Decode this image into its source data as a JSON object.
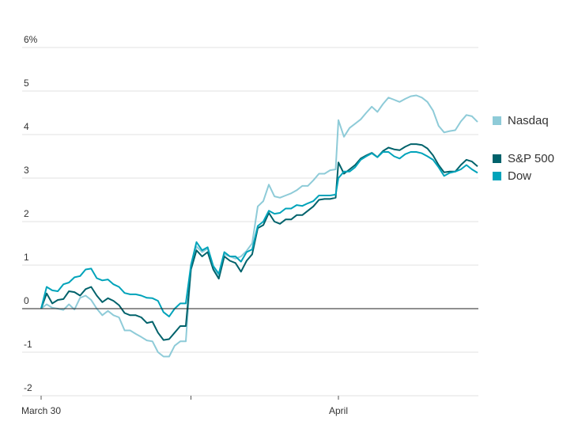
{
  "chart_data": {
    "type": "line",
    "title": "",
    "xlabel": "",
    "ylabel": "",
    "y_unit_suffix": "%",
    "ylim": [
      -2,
      6
    ],
    "y_ticks": [
      -2,
      -1,
      0,
      1,
      2,
      3,
      4,
      5,
      6
    ],
    "y_tick_labels": [
      "-2",
      "-1",
      "0",
      "1",
      "2",
      "3",
      "4",
      "5",
      "6%"
    ],
    "grid": true,
    "legend_placement": "right",
    "days": [
      "03-30",
      "03-31",
      "04-01"
    ],
    "x_ticks": [
      {
        "day": "03-30",
        "label": "March 30"
      },
      {
        "day": "03-31",
        "label": ""
      },
      {
        "day": "04-01",
        "label": "April"
      }
    ],
    "times_full_day": [
      "09:30",
      "09:45",
      "10:00",
      "10:15",
      "10:30",
      "10:45",
      "11:00",
      "11:15",
      "11:30",
      "11:45",
      "12:00",
      "12:15",
      "12:30",
      "12:45",
      "13:00",
      "13:15",
      "13:30",
      "13:45",
      "14:00",
      "14:15",
      "14:30",
      "14:45",
      "15:00",
      "15:15",
      "15:30",
      "15:45",
      "16:00"
    ],
    "series": [
      {
        "name": "Nasdaq",
        "color": "#8ecbd8",
        "values_by_day": [
          [
            0,
            0.1,
            0.02,
            0,
            -0.03,
            0.1,
            -0.02,
            0.25,
            0.3,
            0.2,
            0,
            -0.15,
            -0.05,
            -0.15,
            -0.2,
            -0.5,
            -0.5,
            -0.58,
            -0.65,
            -0.73,
            -0.75,
            -1.0,
            -1.1,
            -1.1,
            -0.85,
            -0.75,
            -0.75
          ],
          [
            0.95,
            1.43,
            1.3,
            1.38,
            0.95,
            0.73,
            1.25,
            1.2,
            1.15,
            1.2,
            1.33,
            1.5,
            2.35,
            2.47,
            2.85,
            2.58,
            2.55,
            2.6,
            2.65,
            2.72,
            2.82,
            2.82,
            2.95,
            3.1,
            3.1,
            3.18,
            3.2
          ],
          [
            4.33,
            3.95,
            4.15,
            4.25,
            4.35,
            4.5,
            4.64,
            4.52,
            4.7,
            4.85,
            4.8,
            4.75,
            4.82,
            4.88,
            4.9,
            4.85,
            4.75,
            4.55,
            4.2,
            4.05,
            4.08,
            4.1,
            4.3,
            4.45,
            4.42,
            4.29
          ]
        ]
      },
      {
        "name": "S&P 500",
        "color": "#00626b",
        "values_by_day": [
          [
            0,
            0.35,
            0.12,
            0.2,
            0.22,
            0.4,
            0.38,
            0.3,
            0.45,
            0.5,
            0.3,
            0.15,
            0.24,
            0.18,
            0.08,
            -0.1,
            -0.15,
            -0.15,
            -0.2,
            -0.33,
            -0.3,
            -0.55,
            -0.72,
            -0.7,
            -0.55,
            -0.4,
            -0.4
          ],
          [
            0.9,
            1.34,
            1.2,
            1.3,
            0.9,
            0.69,
            1.2,
            1.1,
            1.05,
            0.85,
            1.1,
            1.25,
            1.85,
            1.92,
            2.2,
            2.0,
            1.95,
            2.05,
            2.05,
            2.15,
            2.15,
            2.25,
            2.35,
            2.5,
            2.52,
            2.52,
            2.55
          ],
          [
            3.36,
            3.1,
            3.2,
            3.3,
            3.45,
            3.52,
            3.58,
            3.48,
            3.62,
            3.7,
            3.66,
            3.64,
            3.72,
            3.78,
            3.78,
            3.76,
            3.68,
            3.52,
            3.3,
            3.13,
            3.15,
            3.15,
            3.3,
            3.42,
            3.38,
            3.27
          ]
        ]
      },
      {
        "name": "Dow",
        "color": "#00a3ba",
        "values_by_day": [
          [
            0,
            0.5,
            0.42,
            0.4,
            0.56,
            0.6,
            0.72,
            0.75,
            0.9,
            0.92,
            0.7,
            0.65,
            0.67,
            0.56,
            0.5,
            0.36,
            0.33,
            0.33,
            0.3,
            0.25,
            0.24,
            0.18,
            -0.08,
            -0.18,
            0,
            0.12,
            0.12
          ],
          [
            1.0,
            1.53,
            1.34,
            1.41,
            0.98,
            0.8,
            1.3,
            1.2,
            1.2,
            1.08,
            1.3,
            1.36,
            1.9,
            2.0,
            2.25,
            2.18,
            2.2,
            2.3,
            2.3,
            2.38,
            2.36,
            2.42,
            2.47,
            2.6,
            2.6,
            2.6,
            2.62
          ],
          [
            3.0,
            3.15,
            3.15,
            3.25,
            3.42,
            3.5,
            3.57,
            3.48,
            3.6,
            3.6,
            3.5,
            3.45,
            3.55,
            3.6,
            3.6,
            3.57,
            3.5,
            3.42,
            3.25,
            3.05,
            3.12,
            3.15,
            3.2,
            3.3,
            3.2,
            3.12
          ]
        ]
      }
    ]
  },
  "legend": [
    {
      "label": "Nasdaq",
      "color": "#8ecbd8"
    },
    {
      "label": "S&P 500",
      "color": "#00626b"
    },
    {
      "label": "Dow",
      "color": "#00a3ba"
    }
  ]
}
